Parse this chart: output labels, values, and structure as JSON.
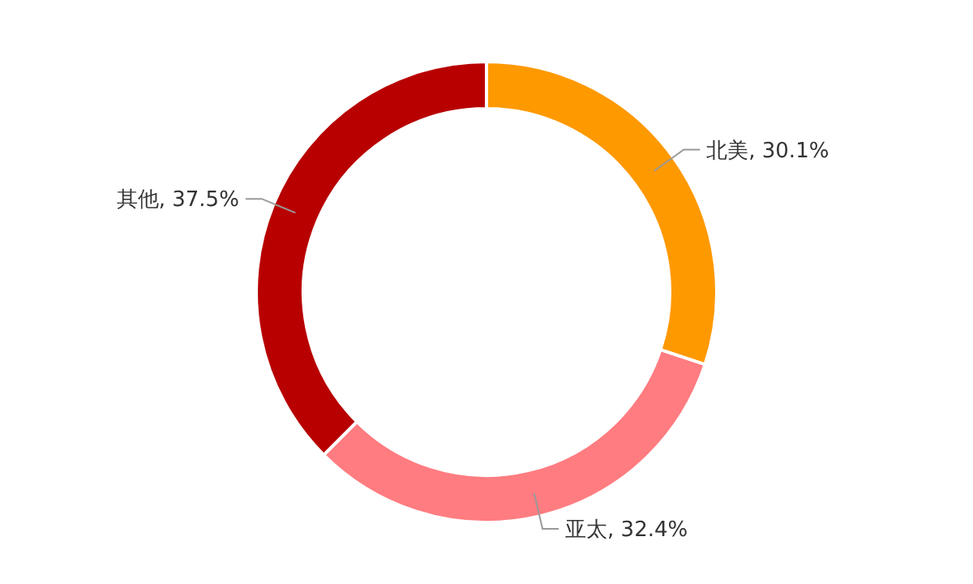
{
  "chart_data": {
    "type": "donut",
    "categories": [
      "北美",
      "亚太",
      "其他"
    ],
    "values": [
      30.1,
      32.4,
      37.5
    ],
    "colors": [
      "#ff9900",
      "#ff7c80",
      "#b80000"
    ],
    "value_labels": [
      "30.1%",
      "32.4%",
      "37.5%"
    ]
  }
}
